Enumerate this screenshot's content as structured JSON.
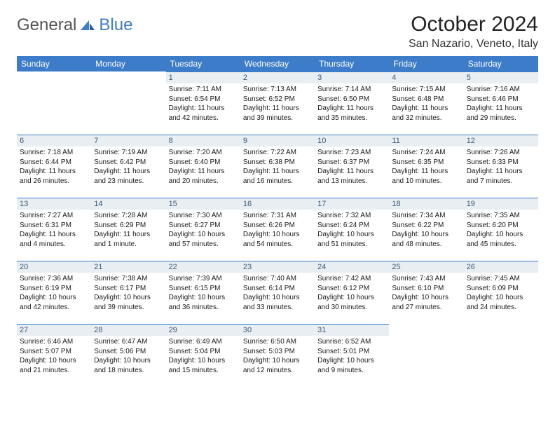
{
  "logo": {
    "part1": "General",
    "part2": "Blue"
  },
  "title": "October 2024",
  "location": "San Nazario, Veneto, Italy",
  "colors": {
    "header_bg": "#3d7cc9",
    "header_text": "#ffffff",
    "daynum_bg": "#e9eef2",
    "daynum_border": "#3d7cc9",
    "daynum_text": "#3a5a7a",
    "body_text": "#1a1a1a",
    "logo_gray": "#555555",
    "logo_blue": "#3d7cc9"
  },
  "typography": {
    "title_fontsize": 30,
    "location_fontsize": 16,
    "weekday_fontsize": 12,
    "daynum_fontsize": 11,
    "body_fontsize": 10
  },
  "weekdays": [
    "Sunday",
    "Monday",
    "Tuesday",
    "Wednesday",
    "Thursday",
    "Friday",
    "Saturday"
  ],
  "weeks": [
    [
      null,
      null,
      {
        "n": "1",
        "sunrise": "Sunrise: 7:11 AM",
        "sunset": "Sunset: 6:54 PM",
        "daylight": "Daylight: 11 hours and 42 minutes."
      },
      {
        "n": "2",
        "sunrise": "Sunrise: 7:13 AM",
        "sunset": "Sunset: 6:52 PM",
        "daylight": "Daylight: 11 hours and 39 minutes."
      },
      {
        "n": "3",
        "sunrise": "Sunrise: 7:14 AM",
        "sunset": "Sunset: 6:50 PM",
        "daylight": "Daylight: 11 hours and 35 minutes."
      },
      {
        "n": "4",
        "sunrise": "Sunrise: 7:15 AM",
        "sunset": "Sunset: 6:48 PM",
        "daylight": "Daylight: 11 hours and 32 minutes."
      },
      {
        "n": "5",
        "sunrise": "Sunrise: 7:16 AM",
        "sunset": "Sunset: 6:46 PM",
        "daylight": "Daylight: 11 hours and 29 minutes."
      }
    ],
    [
      {
        "n": "6",
        "sunrise": "Sunrise: 7:18 AM",
        "sunset": "Sunset: 6:44 PM",
        "daylight": "Daylight: 11 hours and 26 minutes."
      },
      {
        "n": "7",
        "sunrise": "Sunrise: 7:19 AM",
        "sunset": "Sunset: 6:42 PM",
        "daylight": "Daylight: 11 hours and 23 minutes."
      },
      {
        "n": "8",
        "sunrise": "Sunrise: 7:20 AM",
        "sunset": "Sunset: 6:40 PM",
        "daylight": "Daylight: 11 hours and 20 minutes."
      },
      {
        "n": "9",
        "sunrise": "Sunrise: 7:22 AM",
        "sunset": "Sunset: 6:38 PM",
        "daylight": "Daylight: 11 hours and 16 minutes."
      },
      {
        "n": "10",
        "sunrise": "Sunrise: 7:23 AM",
        "sunset": "Sunset: 6:37 PM",
        "daylight": "Daylight: 11 hours and 13 minutes."
      },
      {
        "n": "11",
        "sunrise": "Sunrise: 7:24 AM",
        "sunset": "Sunset: 6:35 PM",
        "daylight": "Daylight: 11 hours and 10 minutes."
      },
      {
        "n": "12",
        "sunrise": "Sunrise: 7:26 AM",
        "sunset": "Sunset: 6:33 PM",
        "daylight": "Daylight: 11 hours and 7 minutes."
      }
    ],
    [
      {
        "n": "13",
        "sunrise": "Sunrise: 7:27 AM",
        "sunset": "Sunset: 6:31 PM",
        "daylight": "Daylight: 11 hours and 4 minutes."
      },
      {
        "n": "14",
        "sunrise": "Sunrise: 7:28 AM",
        "sunset": "Sunset: 6:29 PM",
        "daylight": "Daylight: 11 hours and 1 minute."
      },
      {
        "n": "15",
        "sunrise": "Sunrise: 7:30 AM",
        "sunset": "Sunset: 6:27 PM",
        "daylight": "Daylight: 10 hours and 57 minutes."
      },
      {
        "n": "16",
        "sunrise": "Sunrise: 7:31 AM",
        "sunset": "Sunset: 6:26 PM",
        "daylight": "Daylight: 10 hours and 54 minutes."
      },
      {
        "n": "17",
        "sunrise": "Sunrise: 7:32 AM",
        "sunset": "Sunset: 6:24 PM",
        "daylight": "Daylight: 10 hours and 51 minutes."
      },
      {
        "n": "18",
        "sunrise": "Sunrise: 7:34 AM",
        "sunset": "Sunset: 6:22 PM",
        "daylight": "Daylight: 10 hours and 48 minutes."
      },
      {
        "n": "19",
        "sunrise": "Sunrise: 7:35 AM",
        "sunset": "Sunset: 6:20 PM",
        "daylight": "Daylight: 10 hours and 45 minutes."
      }
    ],
    [
      {
        "n": "20",
        "sunrise": "Sunrise: 7:36 AM",
        "sunset": "Sunset: 6:19 PM",
        "daylight": "Daylight: 10 hours and 42 minutes."
      },
      {
        "n": "21",
        "sunrise": "Sunrise: 7:38 AM",
        "sunset": "Sunset: 6:17 PM",
        "daylight": "Daylight: 10 hours and 39 minutes."
      },
      {
        "n": "22",
        "sunrise": "Sunrise: 7:39 AM",
        "sunset": "Sunset: 6:15 PM",
        "daylight": "Daylight: 10 hours and 36 minutes."
      },
      {
        "n": "23",
        "sunrise": "Sunrise: 7:40 AM",
        "sunset": "Sunset: 6:14 PM",
        "daylight": "Daylight: 10 hours and 33 minutes."
      },
      {
        "n": "24",
        "sunrise": "Sunrise: 7:42 AM",
        "sunset": "Sunset: 6:12 PM",
        "daylight": "Daylight: 10 hours and 30 minutes."
      },
      {
        "n": "25",
        "sunrise": "Sunrise: 7:43 AM",
        "sunset": "Sunset: 6:10 PM",
        "daylight": "Daylight: 10 hours and 27 minutes."
      },
      {
        "n": "26",
        "sunrise": "Sunrise: 7:45 AM",
        "sunset": "Sunset: 6:09 PM",
        "daylight": "Daylight: 10 hours and 24 minutes."
      }
    ],
    [
      {
        "n": "27",
        "sunrise": "Sunrise: 6:46 AM",
        "sunset": "Sunset: 5:07 PM",
        "daylight": "Daylight: 10 hours and 21 minutes."
      },
      {
        "n": "28",
        "sunrise": "Sunrise: 6:47 AM",
        "sunset": "Sunset: 5:06 PM",
        "daylight": "Daylight: 10 hours and 18 minutes."
      },
      {
        "n": "29",
        "sunrise": "Sunrise: 6:49 AM",
        "sunset": "Sunset: 5:04 PM",
        "daylight": "Daylight: 10 hours and 15 minutes."
      },
      {
        "n": "30",
        "sunrise": "Sunrise: 6:50 AM",
        "sunset": "Sunset: 5:03 PM",
        "daylight": "Daylight: 10 hours and 12 minutes."
      },
      {
        "n": "31",
        "sunrise": "Sunrise: 6:52 AM",
        "sunset": "Sunset: 5:01 PM",
        "daylight": "Daylight: 10 hours and 9 minutes."
      },
      null,
      null
    ]
  ]
}
